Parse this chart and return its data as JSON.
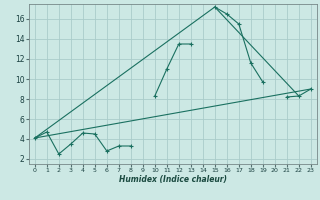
{
  "xlabel": "Humidex (Indice chaleur)",
  "ylabel": "",
  "bg_color": "#cce8e4",
  "grid_color": "#aaccca",
  "line_color": "#1a7060",
  "xlim": [
    -0.5,
    23.5
  ],
  "ylim": [
    1.5,
    17.5
  ],
  "xticks": [
    0,
    1,
    2,
    3,
    4,
    5,
    6,
    7,
    8,
    9,
    10,
    11,
    12,
    13,
    14,
    15,
    16,
    17,
    18,
    19,
    20,
    21,
    22,
    23
  ],
  "yticks": [
    2,
    4,
    6,
    8,
    10,
    12,
    14,
    16
  ],
  "series1_x": [
    0,
    1,
    2,
    3,
    4,
    5,
    6,
    7,
    8,
    9,
    10,
    11,
    12,
    13,
    14,
    15,
    16,
    17,
    18,
    19,
    20,
    21,
    22,
    23
  ],
  "series1_y": [
    4.1,
    4.7,
    2.5,
    3.5,
    4.6,
    4.5,
    2.8,
    3.3,
    3.3,
    null,
    8.3,
    11.0,
    13.5,
    13.5,
    null,
    17.2,
    16.5,
    15.5,
    11.6,
    9.7,
    null,
    8.2,
    8.3,
    9.0
  ],
  "series2_x": [
    0,
    23
  ],
  "series2_y": [
    4.1,
    9.0
  ],
  "series3_x": [
    0,
    15,
    22
  ],
  "series3_y": [
    4.1,
    17.2,
    8.3
  ]
}
